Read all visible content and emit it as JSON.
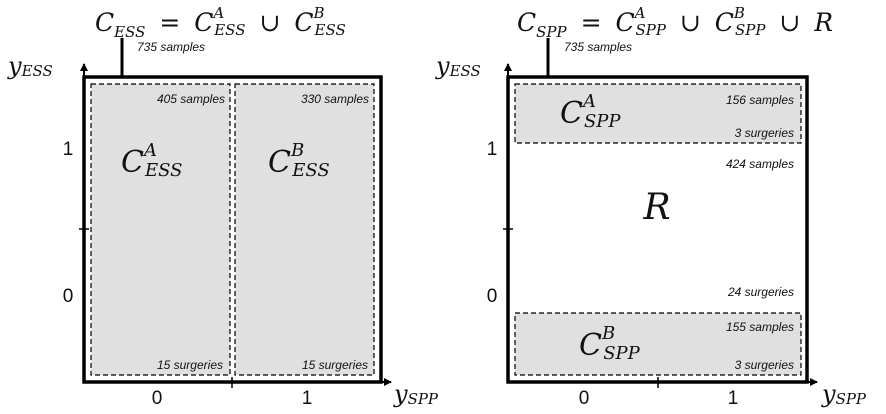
{
  "left": {
    "title": {
      "lhs": "C",
      "lhs_sub": "ESS",
      "eq": "=",
      "a": "C",
      "a_sup": "A",
      "a_sub": "ESS",
      "cup": "∪",
      "b": "C",
      "b_sup": "B",
      "b_sub": "ESS"
    },
    "top_samples": "735 samples",
    "y_axis": {
      "base": "y",
      "sub": "ESS",
      "ticks": [
        "1",
        "0"
      ]
    },
    "x_axis": {
      "base": "y",
      "sub": "SPP",
      "ticks": [
        "0",
        "1"
      ]
    },
    "region_a": {
      "label": "C",
      "sup": "A",
      "sub": "ESS",
      "samples": "405 samples",
      "surgeries": "15 surgeries"
    },
    "region_b": {
      "label": "C",
      "sup": "B",
      "sub": "ESS",
      "samples": "330 samples",
      "surgeries": "15 surgeries"
    }
  },
  "right": {
    "title": {
      "lhs": "C",
      "lhs_sub": "SPP",
      "eq": "=",
      "a": "C",
      "a_sup": "A",
      "a_sub": "SPP",
      "cup": "∪",
      "b": "C",
      "b_sup": "B",
      "b_sub": "SPP",
      "cup2": "∪",
      "r": "R"
    },
    "top_samples": "735 samples",
    "y_axis": {
      "base": "y",
      "sub": "ESS",
      "ticks": [
        "1",
        "0"
      ]
    },
    "x_axis": {
      "base": "y",
      "sub": "SPP",
      "ticks": [
        "0",
        "1"
      ]
    },
    "region_a": {
      "label": "C",
      "sup": "A",
      "sub": "SPP",
      "samples": "156 samples",
      "surgeries": "3 surgeries"
    },
    "region_r": {
      "label": "R",
      "samples": "424 samples",
      "surgeries": "24 surgeries"
    },
    "region_b": {
      "label": "C",
      "sup": "B",
      "sub": "SPP",
      "samples": "155 samples",
      "surgeries": "3 surgeries"
    }
  },
  "colors": {
    "region_fill": "#e0e0e0",
    "line": "#000000"
  }
}
